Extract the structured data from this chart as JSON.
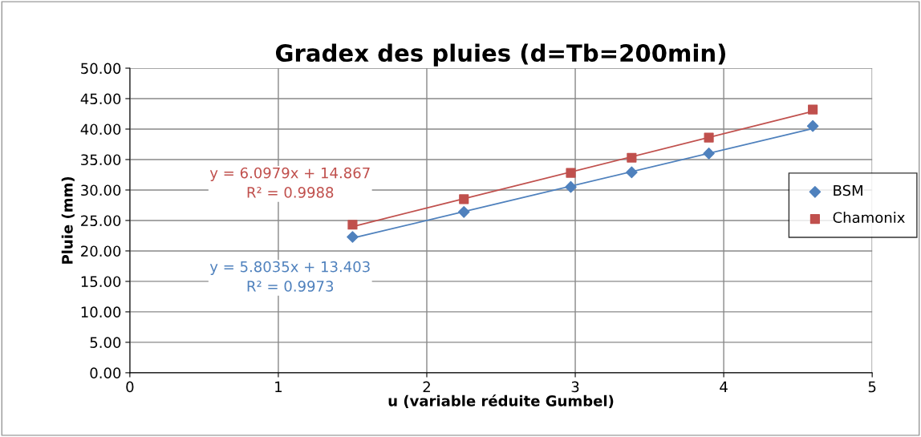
{
  "chart_data": {
    "type": "scatter",
    "title": "Gradex des pluies (d=Tb=200min)",
    "xlabel": "u (variable réduite Gumbel)",
    "ylabel": "Pluie (mm)",
    "series": [
      {
        "name": "BSM",
        "color": "#4f81bd",
        "marker": "diamond",
        "x": [
          1.5,
          2.25,
          2.97,
          3.38,
          3.9,
          4.6
        ],
        "values": [
          22.3,
          26.4,
          30.5,
          32.9,
          36.0,
          40.5
        ]
      },
      {
        "name": "Chamonix",
        "color": "#c0504d",
        "marker": "square",
        "x": [
          1.5,
          2.25,
          2.97,
          3.38,
          3.9,
          4.6
        ],
        "values": [
          24.3,
          28.5,
          32.8,
          35.3,
          38.6,
          43.2
        ]
      },
      {
        "type": "line",
        "color": "#4f81bd",
        "marker": "none",
        "x": [
          1.5,
          4.6
        ],
        "values": [
          22.1,
          40.1
        ]
      },
      {
        "type": "line",
        "color": "#c0504d",
        "marker": "none",
        "x": [
          1.5,
          4.6
        ],
        "values": [
          24.0,
          42.9
        ]
      }
    ],
    "annotations": [
      "y = 5.8035x + 13.403\nR² = 0.9973",
      "y = 6.0979x + 14.867\nR² = 0.9988"
    ],
    "xlim": [
      0,
      5
    ],
    "xticks": [
      0,
      1,
      2,
      3,
      4,
      5
    ],
    "ylim": [
      0,
      50
    ],
    "yticks": [
      {
        "value": 0,
        "label": "0.00"
      },
      {
        "value": 5,
        "label": "5.00"
      },
      {
        "value": 10,
        "label": "10.00"
      },
      {
        "value": 15,
        "label": "15.00"
      },
      {
        "value": 20,
        "label": "20.00"
      },
      {
        "value": 25,
        "label": "25.00"
      },
      {
        "value": 30,
        "label": "30.00"
      },
      {
        "value": 35,
        "label": "35.00"
      },
      {
        "value": 40,
        "label": "40.00"
      },
      {
        "value": 45,
        "label": "45.00"
      },
      {
        "value": 50,
        "label": "50.00"
      }
    ],
    "grid": true,
    "legend": "right"
  }
}
